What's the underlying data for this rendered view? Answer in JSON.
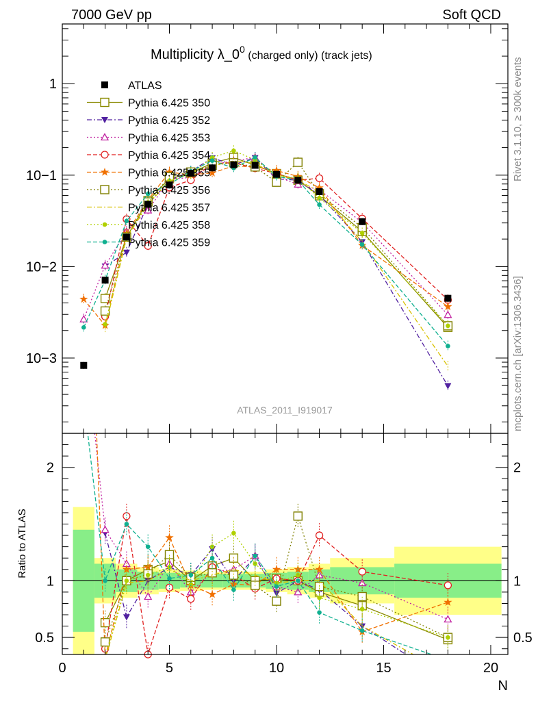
{
  "header": {
    "left": "7000 GeV pp",
    "right": "Soft QCD"
  },
  "side_labels": {
    "rivet": "Rivet 3.1.10, ≥ 300k events",
    "mcplots": "mcplots.cern.ch [arXiv:1306.3436]"
  },
  "chart_data": {
    "type": "line",
    "title_main": "Multiplicity λ_0",
    "title_sup": "0",
    "title_sub": " (charged only) (track jets)",
    "analysis_id": "ATLAS_2011_I919017",
    "xlabel": "N",
    "ylabel_ratio": "Ratio to ATLAS",
    "xlim": [
      0,
      20.8
    ],
    "ylim_main": [
      0.00015,
      4.5
    ],
    "ylim_ratio": [
      0.35,
      2.3
    ],
    "yscale_main": "log",
    "x_ticks": [
      "0",
      "5",
      "10",
      "15",
      "20"
    ],
    "y_ticks_main": [
      "1",
      "10−1",
      "10−2",
      "10−3"
    ],
    "y_ticks_ratio": [
      "2",
      "1",
      "0.5"
    ],
    "legend_position": "top-left",
    "data": {
      "name": "ATLAS",
      "x": [
        1,
        2,
        3,
        4,
        5,
        6,
        7,
        8,
        9,
        10,
        11,
        12,
        14,
        18
      ],
      "y": [
        0.00083,
        0.0071,
        0.021,
        0.048,
        0.078,
        0.105,
        0.12,
        0.13,
        0.128,
        0.102,
        0.088,
        0.066,
        0.031,
        0.0045
      ],
      "band_x": [
        [
          0.5,
          1.5
        ],
        [
          1.5,
          2.5
        ],
        [
          2.5,
          3.5
        ],
        [
          3.5,
          4.5
        ],
        [
          4.5,
          5.5
        ],
        [
          5.5,
          6.5
        ],
        [
          6.5,
          7.5
        ],
        [
          7.5,
          8.5
        ],
        [
          8.5,
          9.5
        ],
        [
          9.5,
          10.5
        ],
        [
          10.5,
          11.5
        ],
        [
          11.5,
          12.5
        ],
        [
          12.5,
          15.5
        ],
        [
          15.5,
          20.5
        ]
      ],
      "band_inner": [
        0.45,
        0.15,
        0.1,
        0.08,
        0.07,
        0.06,
        0.06,
        0.06,
        0.06,
        0.07,
        0.08,
        0.1,
        0.12,
        0.15
      ],
      "band_outer": [
        0.65,
        0.2,
        0.15,
        0.12,
        0.1,
        0.09,
        0.08,
        0.08,
        0.08,
        0.1,
        0.12,
        0.15,
        0.2,
        0.3
      ]
    },
    "series": [
      {
        "name": "Pythia 6.425 350",
        "color": "#8a8a00",
        "marker": "square-open",
        "dash": "solid",
        "x": [
          2,
          3,
          4,
          5,
          6,
          7,
          8,
          9,
          10,
          11,
          12,
          14,
          18
        ],
        "ratio": [
          0.63,
          1.0,
          1.1,
          1.17,
          1.0,
          1.13,
          1.2,
          1.0,
          1.02,
          1.0,
          0.9,
          0.78,
          0.48
        ]
      },
      {
        "name": "Pythia 6.425 352",
        "color": "#5020a0",
        "marker": "triangle-down",
        "dash": "dashdot",
        "x": [
          2,
          3,
          4,
          5,
          6,
          7,
          8,
          9,
          10,
          11,
          12,
          14,
          18
        ],
        "ratio": [
          1.42,
          0.68,
          1.0,
          1.12,
          1.05,
          1.28,
          1.0,
          1.21,
          0.89,
          1.0,
          0.92,
          0.6,
          0.11
        ]
      },
      {
        "name": "Pythia 6.425 353",
        "color": "#c020a0",
        "marker": "triangle-up-open",
        "dash": "dot",
        "x": [
          1,
          2,
          3,
          4,
          5,
          6,
          7,
          8,
          9,
          10,
          11,
          12,
          14,
          18
        ],
        "ratio": [
          3.2,
          1.45,
          1.15,
          0.86,
          1.15,
          0.9,
          1.08,
          1.1,
          1.22,
          0.95,
          0.9,
          1.05,
          0.98,
          0.66
        ]
      },
      {
        "name": "Pythia 6.425 354",
        "color": "#e02020",
        "marker": "circle-open",
        "dash": "dash",
        "x": [
          2,
          3,
          4,
          5,
          6,
          7,
          8,
          9,
          10,
          11,
          12,
          14,
          18
        ],
        "ratio": [
          0.4,
          1.57,
          0.35,
          0.94,
          0.84,
          1.12,
          1.05,
          0.93,
          1.02,
          1.0,
          1.4,
          1.08,
          0.96
        ]
      },
      {
        "name": "Pythia 6.425 355",
        "color": "#f07000",
        "marker": "star",
        "dash": "dash",
        "x": [
          1,
          2,
          3,
          4,
          5,
          6,
          7,
          8,
          9,
          10,
          11,
          12,
          14,
          18
        ],
        "ratio": [
          5.3,
          0.32,
          1.1,
          1.12,
          1.38,
          0.96,
          0.88,
          0.97,
          0.96,
          1.1,
          1.1,
          1.1,
          0.55,
          0.81
        ]
      },
      {
        "name": "Pythia 6.425 356",
        "color": "#808000",
        "marker": "square-open",
        "dash": "dot",
        "x": [
          2,
          3,
          4,
          5,
          6,
          7,
          8,
          9,
          10,
          11,
          12,
          14,
          18
        ],
        "ratio": [
          0.46,
          1.0,
          1.06,
          1.23,
          1.03,
          1.07,
          1.05,
          0.96,
          0.82,
          1.57,
          0.95,
          0.86,
          0.5
        ]
      },
      {
        "name": "Pythia 6.425 357",
        "color": "#d8c000",
        "marker": "none",
        "dash": "dashdot",
        "x": [
          2,
          3,
          4,
          5,
          6,
          7,
          8,
          9,
          10,
          11,
          12,
          14,
          18
        ],
        "ratio": [
          0.3,
          0.98,
          1.0,
          1.1,
          1.0,
          1.05,
          1.1,
          1.05,
          0.98,
          1.0,
          1.0,
          0.6,
          0.18
        ]
      },
      {
        "name": "Pythia 6.425 358",
        "color": "#b0d000",
        "marker": "dot",
        "dash": "dot",
        "x": [
          2,
          3,
          4,
          5,
          6,
          7,
          8,
          9,
          10,
          11,
          12,
          14,
          18
        ],
        "ratio": [
          0.33,
          1.0,
          1.05,
          1.12,
          0.97,
          1.3,
          1.42,
          1.15,
          0.98,
          1.05,
          0.85,
          0.75,
          0.5
        ]
      },
      {
        "name": "Pythia 6.425 359",
        "color": "#10b090",
        "marker": "dot",
        "dash": "dash",
        "x": [
          1,
          2,
          3,
          4,
          5,
          6,
          7,
          8,
          9,
          10,
          11,
          12,
          14,
          18
        ],
        "ratio": [
          2.6,
          1.0,
          1.5,
          1.3,
          1.02,
          1.05,
          1.2,
          0.92,
          1.22,
          0.95,
          1.0,
          0.72,
          0.56,
          0.3
        ]
      }
    ]
  }
}
